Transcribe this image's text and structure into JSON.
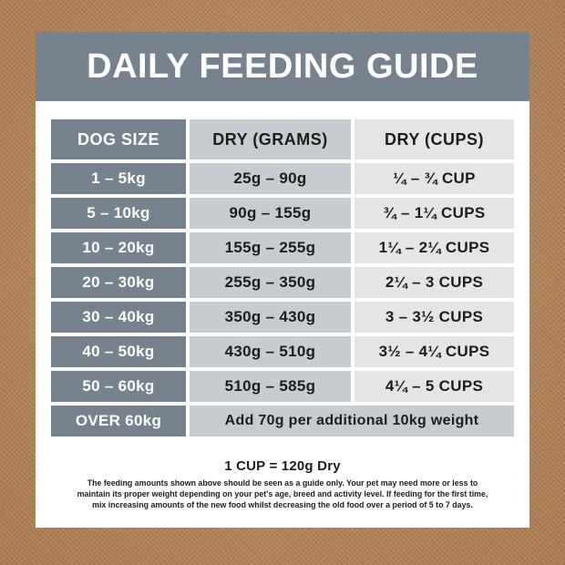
{
  "header": {
    "title": "DAILY FEEDING GUIDE"
  },
  "table": {
    "columns": [
      {
        "label": "DOG SIZE"
      },
      {
        "label": "DRY (GRAMS)"
      },
      {
        "label": "DRY (CUPS)"
      }
    ],
    "rows": [
      {
        "size": "1 – 5kg",
        "grams": "25g – 90g",
        "cups": "¼ – ¾ CUP"
      },
      {
        "size": "5 – 10kg",
        "grams": "90g – 155g",
        "cups": "¾ – 1¼ CUPS"
      },
      {
        "size": "10 – 20kg",
        "grams": "155g – 255g",
        "cups": "1¼ – 2¼ CUPS"
      },
      {
        "size": "20 – 30kg",
        "grams": "255g – 350g",
        "cups": "2¼ – 3 CUPS"
      },
      {
        "size": "30 – 40kg",
        "grams": "350g – 430g",
        "cups": "3 – 3½ CUPS"
      },
      {
        "size": "40 – 50kg",
        "grams": "430g – 510g",
        "cups": "3½ – 4¼ CUPS"
      },
      {
        "size": "50 – 60kg",
        "grams": "510g – 585g",
        "cups": "4¼ – 5 CUPS"
      }
    ],
    "over_row": {
      "size": "OVER 60kg",
      "note": "Add 70g per additional 10kg weight"
    }
  },
  "footer": {
    "cup_equivalence": "1 CUP = 120g Dry",
    "disclaimer_lines": [
      "The feeding amounts shown above should be seen as a guide only. Your pet may need more or less to",
      "maintain its proper weight depending on your pet's age, breed and activity level. If feeding for the first time,",
      "mix increasing amounts of the new food whilst decreasing the old food over a period of 5 to 7 days."
    ]
  },
  "colors": {
    "background_texture": "#b5865a",
    "header_band": "#76828e",
    "size_column": "#76828e",
    "grams_column": "#c6ccd0",
    "cups_column": "#e3e5e7",
    "card": "#ffffff",
    "text_dark": "#1d1d1b",
    "text_light": "#ffffff"
  }
}
